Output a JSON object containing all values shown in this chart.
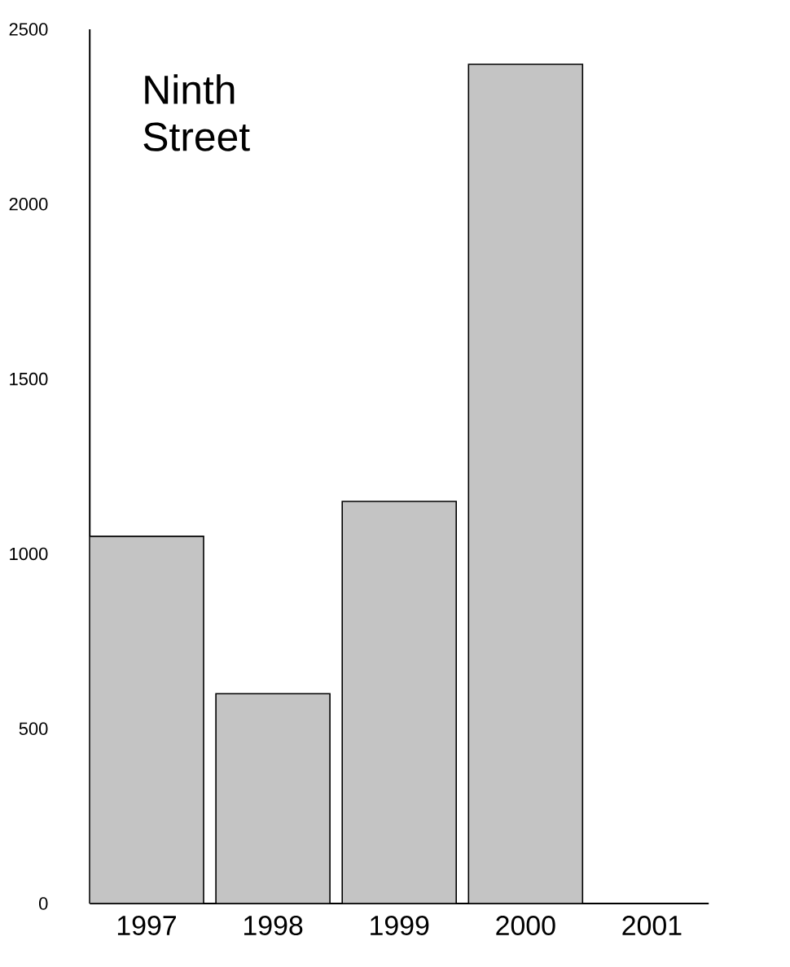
{
  "chart_data": {
    "type": "bar",
    "title": "Ninth Street",
    "categories": [
      "1997",
      "1998",
      "1999",
      "2000",
      "2001"
    ],
    "values": [
      1050,
      600,
      1150,
      2400,
      null
    ],
    "color": "#c4c4c4",
    "ylim": [
      0,
      2500
    ],
    "yticks": [
      0,
      500,
      1000,
      1500,
      2000,
      2500
    ],
    "grid": false
  }
}
